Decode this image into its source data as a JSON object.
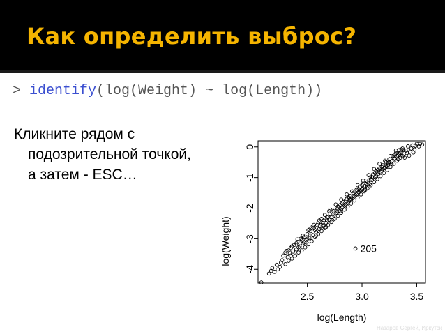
{
  "slide": {
    "title": "Как определить выброс?",
    "code_prompt": "> ",
    "code_fn": "identify",
    "code_args": "(log(Weight) ~ log(Length))",
    "body_line1": "Кликните рядом с",
    "body_line2": "подозрительной точкой,",
    "body_line3": "а затем - ESC…",
    "footer": "Назаров Сергей, Иркутск"
  },
  "colors": {
    "header_bg": "#000000",
    "title": "#f5b400",
    "code_fn": "#3b4fd0",
    "points": "#000000"
  },
  "chart_data": {
    "type": "scatter",
    "title": "",
    "xlabel": "log(Length)",
    "ylabel": "log(Weight)",
    "xlim": [
      2.05,
      3.58
    ],
    "ylim": [
      -4.45,
      0.2
    ],
    "xticks": [
      2.5,
      3.0,
      3.5
    ],
    "xtick_labels": [
      "2.5",
      "3.0",
      "3.5"
    ],
    "yticks": [
      -4,
      -3,
      -2,
      -1,
      0
    ],
    "ytick_labels": [
      "-4",
      "-3",
      "-2",
      "-1",
      "0"
    ],
    "grid": false,
    "marker": "open-circle",
    "annotations": [
      {
        "label": "205",
        "x": 2.94,
        "y": -3.32
      }
    ],
    "points": [
      [
        2.08,
        -4.43
      ],
      [
        2.15,
        -4.14
      ],
      [
        2.17,
        -4.05
      ],
      [
        2.2,
        -4.08
      ],
      [
        2.18,
        -3.96
      ],
      [
        2.23,
        -4.0
      ],
      [
        2.25,
        -3.92
      ],
      [
        2.26,
        -3.78
      ],
      [
        2.28,
        -3.55
      ],
      [
        2.3,
        -3.83
      ],
      [
        2.31,
        -3.4
      ],
      [
        2.32,
        -3.6
      ],
      [
        2.33,
        -3.72
      ],
      [
        2.34,
        -3.48
      ],
      [
        2.35,
        -3.3
      ],
      [
        2.36,
        -3.65
      ],
      [
        2.37,
        -3.42
      ],
      [
        2.38,
        -3.2
      ],
      [
        2.39,
        -3.55
      ],
      [
        2.4,
        -3.35
      ],
      [
        2.41,
        -3.1
      ],
      [
        2.42,
        -3.45
      ],
      [
        2.43,
        -3.25
      ],
      [
        2.44,
        -3.0
      ],
      [
        2.45,
        -3.38
      ],
      [
        2.46,
        -3.15
      ],
      [
        2.47,
        -2.95
      ],
      [
        2.48,
        -3.28
      ],
      [
        2.49,
        -3.05
      ],
      [
        2.5,
        -2.85
      ],
      [
        2.51,
        -3.18
      ],
      [
        2.52,
        -2.98
      ],
      [
        2.53,
        -2.75
      ],
      [
        2.54,
        -3.08
      ],
      [
        2.55,
        -2.88
      ],
      [
        2.56,
        -2.65
      ],
      [
        2.57,
        -2.95
      ],
      [
        2.58,
        -2.78
      ],
      [
        2.59,
        -2.55
      ],
      [
        2.6,
        -2.85
      ],
      [
        2.61,
        -2.68
      ],
      [
        2.62,
        -2.45
      ],
      [
        2.63,
        -2.75
      ],
      [
        2.64,
        -2.58
      ],
      [
        2.65,
        -2.4
      ],
      [
        2.66,
        -2.65
      ],
      [
        2.67,
        -2.48
      ],
      [
        2.68,
        -2.3
      ],
      [
        2.69,
        -2.55
      ],
      [
        2.7,
        -2.38
      ],
      [
        2.71,
        -2.2
      ],
      [
        2.72,
        -2.45
      ],
      [
        2.73,
        -2.28
      ],
      [
        2.74,
        -2.1
      ],
      [
        2.75,
        -2.35
      ],
      [
        2.76,
        -2.18
      ],
      [
        2.77,
        -2.0
      ],
      [
        2.78,
        -2.25
      ],
      [
        2.79,
        -2.08
      ],
      [
        2.8,
        -1.9
      ],
      [
        2.81,
        -2.15
      ],
      [
        2.82,
        -1.98
      ],
      [
        2.83,
        -1.8
      ],
      [
        2.84,
        -2.05
      ],
      [
        2.85,
        -1.88
      ],
      [
        2.86,
        -1.7
      ],
      [
        2.87,
        -1.95
      ],
      [
        2.88,
        -1.78
      ],
      [
        2.89,
        -1.6
      ],
      [
        2.9,
        -1.85
      ],
      [
        2.91,
        -1.68
      ],
      [
        2.92,
        -1.5
      ],
      [
        2.93,
        -1.75
      ],
      [
        2.94,
        -1.58
      ],
      [
        2.95,
        -1.4
      ],
      [
        2.96,
        -1.65
      ],
      [
        2.97,
        -1.48
      ],
      [
        2.98,
        -1.3
      ],
      [
        2.99,
        -1.55
      ],
      [
        3.0,
        -1.38
      ],
      [
        3.01,
        -1.2
      ],
      [
        3.02,
        -1.45
      ],
      [
        3.03,
        -1.28
      ],
      [
        3.04,
        -1.1
      ],
      [
        3.05,
        -1.35
      ],
      [
        3.06,
        -1.18
      ],
      [
        3.07,
        -1.0
      ],
      [
        3.08,
        -1.25
      ],
      [
        3.09,
        -1.08
      ],
      [
        3.1,
        -0.9
      ],
      [
        3.11,
        -1.15
      ],
      [
        3.12,
        -0.98
      ],
      [
        3.13,
        -0.8
      ],
      [
        3.14,
        -1.05
      ],
      [
        3.15,
        -0.88
      ],
      [
        3.16,
        -0.7
      ],
      [
        3.17,
        -0.95
      ],
      [
        3.18,
        -0.78
      ],
      [
        3.19,
        -0.6
      ],
      [
        3.2,
        -0.85
      ],
      [
        3.21,
        -0.68
      ],
      [
        3.22,
        -0.5
      ],
      [
        3.23,
        -0.75
      ],
      [
        3.24,
        -0.58
      ],
      [
        3.25,
        -0.4
      ],
      [
        3.26,
        -0.65
      ],
      [
        3.27,
        -0.48
      ],
      [
        3.28,
        -0.3
      ],
      [
        3.29,
        -0.55
      ],
      [
        3.3,
        -0.38
      ],
      [
        3.31,
        -0.2
      ],
      [
        3.32,
        -0.45
      ],
      [
        3.33,
        -0.28
      ],
      [
        3.34,
        -0.1
      ],
      [
        3.35,
        -0.35
      ],
      [
        3.36,
        -0.18
      ],
      [
        3.37,
        -0.05
      ],
      [
        3.38,
        -0.25
      ],
      [
        3.4,
        -0.12
      ],
      [
        3.42,
        0.02
      ],
      [
        3.44,
        -0.15
      ],
      [
        3.46,
        0.05
      ],
      [
        3.48,
        -0.08
      ],
      [
        3.5,
        0.1
      ],
      [
        3.52,
        0.02
      ],
      [
        3.55,
        0.08
      ],
      [
        2.3,
        -3.45
      ],
      [
        2.35,
        -3.55
      ],
      [
        2.4,
        -3.15
      ],
      [
        2.45,
        -3.05
      ],
      [
        2.5,
        -3.0
      ],
      [
        2.52,
        -2.7
      ],
      [
        2.55,
        -2.6
      ],
      [
        2.58,
        -2.9
      ],
      [
        2.6,
        -2.5
      ],
      [
        2.62,
        -2.6
      ],
      [
        2.65,
        -2.55
      ],
      [
        2.68,
        -2.4
      ],
      [
        2.7,
        -2.1
      ],
      [
        2.72,
        -2.3
      ],
      [
        2.75,
        -2.05
      ],
      [
        2.78,
        -1.95
      ],
      [
        2.8,
        -2.1
      ],
      [
        2.82,
        -1.85
      ],
      [
        2.85,
        -1.75
      ],
      [
        2.88,
        -1.65
      ],
      [
        2.9,
        -1.7
      ],
      [
        2.92,
        -1.6
      ],
      [
        2.95,
        -1.55
      ],
      [
        2.98,
        -1.45
      ],
      [
        3.0,
        -1.25
      ],
      [
        3.02,
        -1.3
      ],
      [
        3.05,
        -1.15
      ],
      [
        3.08,
        -1.05
      ],
      [
        3.1,
        -1.0
      ],
      [
        3.12,
        -0.85
      ],
      [
        3.15,
        -0.75
      ],
      [
        3.18,
        -0.65
      ],
      [
        3.2,
        -0.7
      ],
      [
        3.22,
        -0.6
      ],
      [
        3.25,
        -0.5
      ],
      [
        3.28,
        -0.45
      ],
      [
        3.3,
        -0.25
      ],
      [
        3.32,
        -0.3
      ],
      [
        3.35,
        -0.2
      ],
      [
        3.38,
        -0.1
      ],
      [
        2.63,
        -2.35
      ],
      [
        2.67,
        -2.62
      ],
      [
        2.73,
        -2.4
      ],
      [
        2.77,
        -2.15
      ],
      [
        2.83,
        -1.95
      ],
      [
        2.87,
        -1.82
      ],
      [
        2.93,
        -1.62
      ],
      [
        2.97,
        -1.38
      ],
      [
        3.03,
        -1.4
      ],
      [
        3.07,
        -1.22
      ],
      [
        3.13,
        -0.95
      ],
      [
        3.17,
        -0.82
      ],
      [
        3.23,
        -0.62
      ],
      [
        3.27,
        -0.55
      ],
      [
        3.33,
        -0.4
      ],
      [
        3.37,
        -0.3
      ],
      [
        3.41,
        -0.2
      ],
      [
        3.45,
        -0.05
      ],
      [
        3.47,
        -0.18
      ],
      [
        3.43,
        -0.28
      ],
      [
        3.39,
        -0.35
      ],
      [
        3.36,
        -0.08
      ],
      [
        3.31,
        -0.12
      ],
      [
        3.26,
        -0.3
      ],
      [
        3.21,
        -0.45
      ],
      [
        3.16,
        -0.55
      ],
      [
        3.11,
        -0.72
      ],
      [
        3.06,
        -0.92
      ],
      [
        3.01,
        -1.1
      ],
      [
        2.96,
        -1.25
      ],
      [
        2.91,
        -1.45
      ],
      [
        2.86,
        -1.55
      ],
      [
        2.81,
        -1.72
      ],
      [
        2.76,
        -1.88
      ],
      [
        2.71,
        -2.05
      ],
      [
        2.66,
        -2.22
      ],
      [
        2.61,
        -2.4
      ],
      [
        2.56,
        -2.55
      ],
      [
        2.51,
        -2.72
      ],
      [
        2.46,
        -2.9
      ],
      [
        2.41,
        -3.02
      ],
      [
        2.36,
        -3.25
      ],
      [
        2.33,
        -3.38
      ],
      [
        2.42,
        -3.28
      ],
      [
        2.47,
        -3.12
      ],
      [
        2.57,
        -2.72
      ],
      [
        2.64,
        -2.48
      ],
      [
        2.69,
        -2.28
      ],
      [
        2.79,
        -1.98
      ],
      [
        2.84,
        -1.92
      ],
      [
        2.89,
        -1.72
      ],
      [
        2.99,
        -1.42
      ],
      [
        3.04,
        -1.22
      ],
      [
        3.09,
        -0.98
      ],
      [
        3.14,
        -0.82
      ],
      [
        3.19,
        -0.72
      ],
      [
        3.24,
        -0.52
      ],
      [
        3.29,
        -0.38
      ],
      [
        3.34,
        -0.22
      ],
      [
        3.49,
        0.04
      ],
      [
        3.53,
        0.1
      ],
      [
        2.27,
        -3.7
      ],
      [
        2.22,
        -3.85
      ],
      [
        2.94,
        -3.32
      ]
    ]
  }
}
